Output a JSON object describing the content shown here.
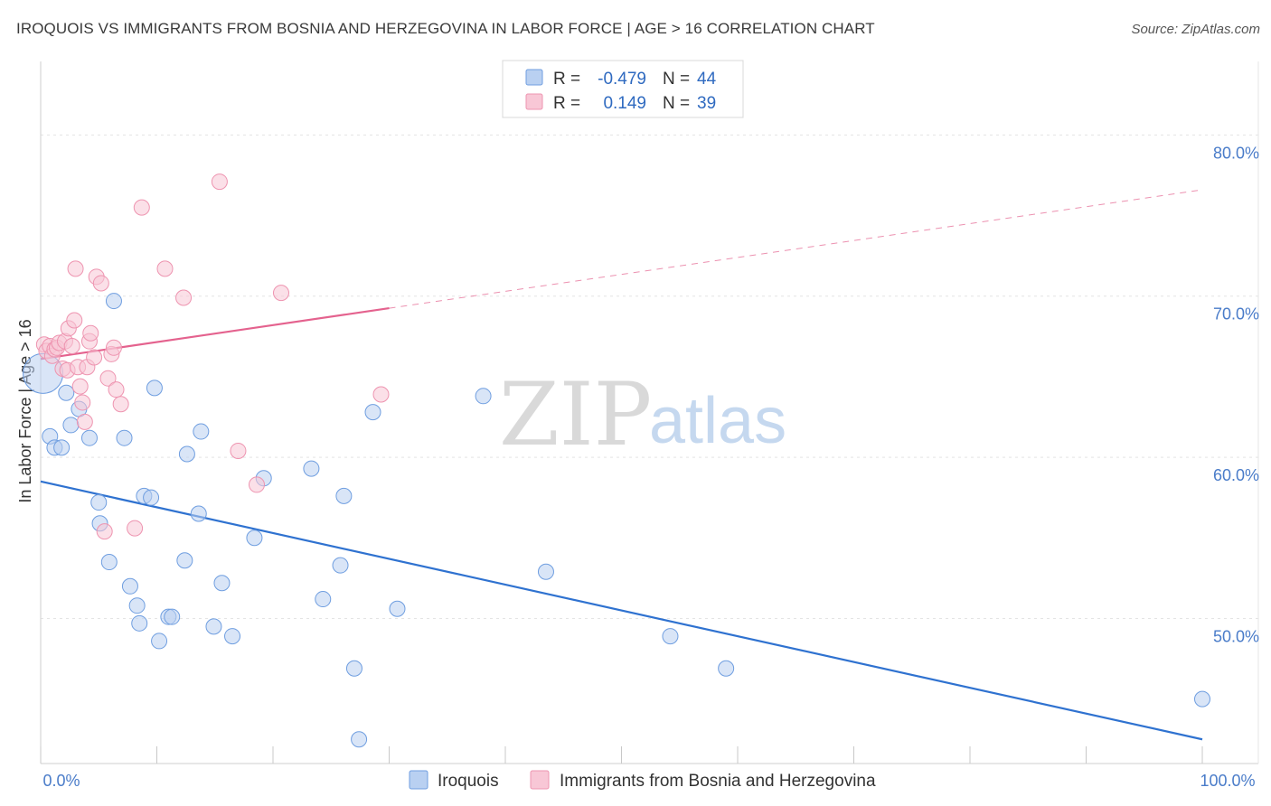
{
  "title": "IROQUOIS VS IMMIGRANTS FROM BOSNIA AND HERZEGOVINA IN LABOR FORCE | AGE > 16 CORRELATION CHART",
  "source": "Source: ZipAtlas.com",
  "watermark": {
    "zip": "ZIP",
    "atlas": "atlas"
  },
  "legend": {
    "rows": [
      {
        "r_label": "R =",
        "r_value": "-0.479",
        "n_label": "N =",
        "n_value": "44"
      },
      {
        "r_label": "R =",
        "r_value": "0.149",
        "n_label": "N =",
        "n_value": "39"
      }
    ]
  },
  "chart_data": {
    "type": "scatter",
    "title": "IROQUOIS VS IMMIGRANTS FROM BOSNIA AND HERZEGOVINA IN LABOR FORCE | AGE > 16 CORRELATION CHART",
    "xlabel": "",
    "ylabel": "In Labor Force | Age > 16",
    "xlim": [
      0,
      100
    ],
    "ylim": [
      41,
      84
    ],
    "x_tick_labels": [
      "0.0%",
      "100.0%"
    ],
    "y_ticks": [
      50,
      60,
      70,
      80
    ],
    "y_tick_labels": [
      "50.0%",
      "60.0%",
      "70.0%",
      "80.0%"
    ],
    "grid": true,
    "legend_position": "top-center",
    "series": [
      {
        "name": "Iroquois",
        "color": "#6f9ee0",
        "fill": "#b9d0f1",
        "r": -0.479,
        "n": 44,
        "trend": {
          "x": [
            0,
            100
          ],
          "y": [
            58.5,
            42.5
          ],
          "dashed_from": null
        },
        "points": [
          [
            0.2,
            65.2
          ],
          [
            0.8,
            61.3
          ],
          [
            1.2,
            60.6
          ],
          [
            1.8,
            60.6
          ],
          [
            2.2,
            64.0
          ],
          [
            2.6,
            62.0
          ],
          [
            3.3,
            63.0
          ],
          [
            4.2,
            61.2
          ],
          [
            5.0,
            57.2
          ],
          [
            5.1,
            55.9
          ],
          [
            5.9,
            53.5
          ],
          [
            6.3,
            69.7
          ],
          [
            7.2,
            61.2
          ],
          [
            7.7,
            52.0
          ],
          [
            8.3,
            50.8
          ],
          [
            8.5,
            49.7
          ],
          [
            8.9,
            57.6
          ],
          [
            9.5,
            57.5
          ],
          [
            10.2,
            48.6
          ],
          [
            9.8,
            64.3
          ],
          [
            11.0,
            50.1
          ],
          [
            11.3,
            50.1
          ],
          [
            12.4,
            53.6
          ],
          [
            12.6,
            60.2
          ],
          [
            13.6,
            56.5
          ],
          [
            13.8,
            61.6
          ],
          [
            14.9,
            49.5
          ],
          [
            15.6,
            52.2
          ],
          [
            16.5,
            48.9
          ],
          [
            18.4,
            55.0
          ],
          [
            19.2,
            58.7
          ],
          [
            23.3,
            59.3
          ],
          [
            24.3,
            51.2
          ],
          [
            25.8,
            53.3
          ],
          [
            26.1,
            57.6
          ],
          [
            27.0,
            46.9
          ],
          [
            27.4,
            42.5
          ],
          [
            28.6,
            62.8
          ],
          [
            30.7,
            50.6
          ],
          [
            38.1,
            63.8
          ],
          [
            43.5,
            52.9
          ],
          [
            54.2,
            48.9
          ],
          [
            59.0,
            46.9
          ],
          [
            100.0,
            45.0
          ]
        ]
      },
      {
        "name": "Immigrants from Bosnia and Herzegovina",
        "color": "#ee94b0",
        "fill": "#f8c7d6",
        "r": 0.149,
        "n": 39,
        "trend": {
          "x": [
            0,
            100
          ],
          "y": [
            66.1,
            76.6
          ],
          "dashed_from": 30
        },
        "points": [
          [
            0.3,
            67.0
          ],
          [
            0.5,
            66.6
          ],
          [
            0.8,
            66.9
          ],
          [
            1.0,
            66.3
          ],
          [
            1.2,
            66.7
          ],
          [
            1.4,
            66.8
          ],
          [
            1.6,
            67.1
          ],
          [
            1.9,
            65.5
          ],
          [
            2.1,
            67.2
          ],
          [
            2.3,
            65.4
          ],
          [
            2.4,
            68.0
          ],
          [
            2.7,
            66.9
          ],
          [
            2.9,
            68.5
          ],
          [
            3.0,
            71.7
          ],
          [
            3.2,
            65.6
          ],
          [
            3.4,
            64.4
          ],
          [
            3.6,
            63.4
          ],
          [
            3.8,
            62.2
          ],
          [
            4.0,
            65.6
          ],
          [
            4.2,
            67.2
          ],
          [
            4.3,
            67.7
          ],
          [
            4.6,
            66.2
          ],
          [
            4.8,
            71.2
          ],
          [
            5.2,
            70.8
          ],
          [
            5.5,
            55.4
          ],
          [
            5.8,
            64.9
          ],
          [
            6.1,
            66.4
          ],
          [
            6.3,
            66.8
          ],
          [
            6.5,
            64.2
          ],
          [
            6.9,
            63.3
          ],
          [
            8.1,
            55.6
          ],
          [
            8.7,
            75.5
          ],
          [
            10.7,
            71.7
          ],
          [
            12.3,
            69.9
          ],
          [
            15.4,
            77.1
          ],
          [
            17.0,
            60.4
          ],
          [
            18.6,
            58.3
          ],
          [
            20.7,
            70.2
          ],
          [
            29.3,
            63.9
          ]
        ]
      }
    ]
  }
}
